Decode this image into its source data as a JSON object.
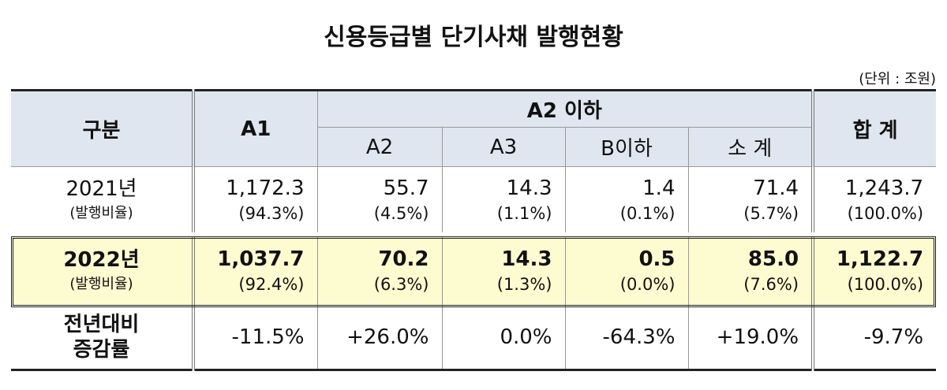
{
  "title": "신용등급별 단기사채 발행현황",
  "unit": "(단위 : 조원)",
  "header": {
    "category": "구분",
    "a1": "A1",
    "a2_group": "A2 이하",
    "a2": "A2",
    "a3": "A3",
    "b": "B이하",
    "subtotal": "소 계",
    "total": "합 계"
  },
  "rows": [
    {
      "label": "2021년",
      "sublabel": "(발행비율)",
      "cells": [
        {
          "value": "1,172.3",
          "ratio": "(94.3%)"
        },
        {
          "value": "55.7",
          "ratio": "(4.5%)"
        },
        {
          "value": "14.3",
          "ratio": "(1.1%)"
        },
        {
          "value": "1.4",
          "ratio": "(0.1%)"
        },
        {
          "value": "71.4",
          "ratio": "(5.7%)"
        },
        {
          "value": "1,243.7",
          "ratio": "(100.0%)"
        }
      ]
    },
    {
      "label": "2022년",
      "sublabel": "(발행비율)",
      "cells": [
        {
          "value": "1,037.7",
          "ratio": "(92.4%)"
        },
        {
          "value": "70.2",
          "ratio": "(6.3%)"
        },
        {
          "value": "14.3",
          "ratio": "(1.3%)"
        },
        {
          "value": "0.5",
          "ratio": "(0.0%)"
        },
        {
          "value": "85.0",
          "ratio": "(7.6%)"
        },
        {
          "value": "1,122.7",
          "ratio": "(100.0%)"
        }
      ]
    },
    {
      "label": "전년대비",
      "sublabel": "증감률",
      "cells": [
        {
          "value": "-11.5%"
        },
        {
          "value": "+26.0%"
        },
        {
          "value": "0.0%"
        },
        {
          "value": "-64.3%"
        },
        {
          "value": "+19.0%"
        },
        {
          "value": "-9.7%"
        }
      ]
    }
  ]
}
